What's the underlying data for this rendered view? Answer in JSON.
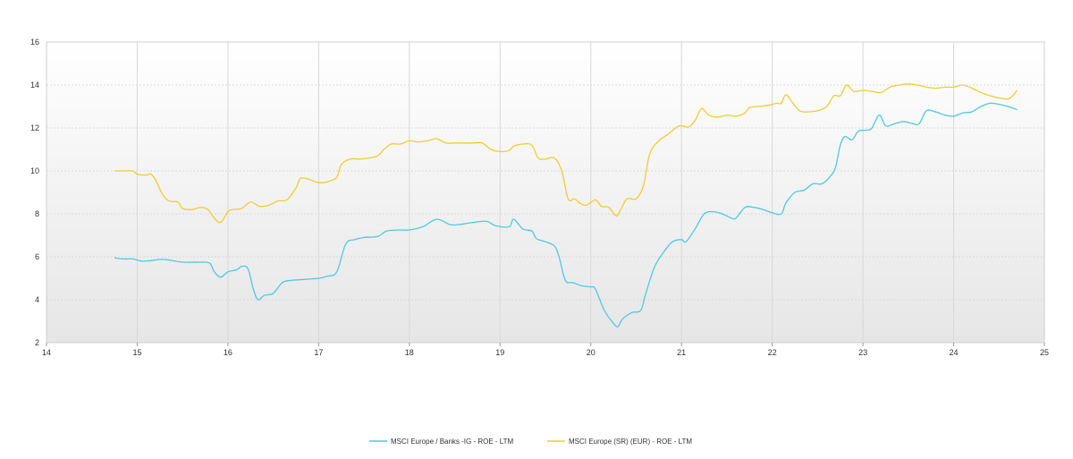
{
  "chart_data": {
    "type": "line",
    "title": "",
    "xlabel": "",
    "ylabel": "",
    "xlim": [
      14,
      25
    ],
    "ylim": [
      2,
      16
    ],
    "x_ticks": [
      14,
      15,
      16,
      17,
      18,
      19,
      20,
      21,
      22,
      23,
      24,
      25
    ],
    "y_ticks": [
      2,
      4,
      6,
      8,
      10,
      12,
      14,
      16
    ],
    "grid": true,
    "legend_position": "bottom",
    "series": [
      {
        "name": "MSCI Europe / Banks -IG - ROE - LTM",
        "color": "#4ec9e6",
        "points": [
          [
            14.75,
            5.95
          ],
          [
            14.85,
            5.9
          ],
          [
            14.95,
            5.9
          ],
          [
            15.05,
            5.8
          ],
          [
            15.15,
            5.82
          ],
          [
            15.25,
            5.88
          ],
          [
            15.35,
            5.85
          ],
          [
            15.5,
            5.75
          ],
          [
            15.7,
            5.75
          ],
          [
            15.8,
            5.7
          ],
          [
            15.85,
            5.3
          ],
          [
            15.92,
            5.05
          ],
          [
            16.0,
            5.3
          ],
          [
            16.1,
            5.4
          ],
          [
            16.15,
            5.55
          ],
          [
            16.22,
            5.45
          ],
          [
            16.28,
            4.5
          ],
          [
            16.33,
            4.0
          ],
          [
            16.4,
            4.2
          ],
          [
            16.5,
            4.3
          ],
          [
            16.6,
            4.8
          ],
          [
            16.7,
            4.9
          ],
          [
            16.85,
            4.95
          ],
          [
            17.0,
            5.0
          ],
          [
            17.1,
            5.1
          ],
          [
            17.2,
            5.3
          ],
          [
            17.3,
            6.6
          ],
          [
            17.4,
            6.8
          ],
          [
            17.5,
            6.9
          ],
          [
            17.65,
            6.95
          ],
          [
            17.75,
            7.2
          ],
          [
            17.9,
            7.25
          ],
          [
            18.0,
            7.25
          ],
          [
            18.15,
            7.4
          ],
          [
            18.3,
            7.75
          ],
          [
            18.45,
            7.5
          ],
          [
            18.55,
            7.5
          ],
          [
            18.7,
            7.6
          ],
          [
            18.85,
            7.65
          ],
          [
            18.95,
            7.45
          ],
          [
            19.1,
            7.4
          ],
          [
            19.15,
            7.75
          ],
          [
            19.25,
            7.3
          ],
          [
            19.35,
            7.2
          ],
          [
            19.4,
            6.85
          ],
          [
            19.5,
            6.7
          ],
          [
            19.6,
            6.5
          ],
          [
            19.65,
            6.0
          ],
          [
            19.72,
            4.9
          ],
          [
            19.8,
            4.8
          ],
          [
            19.9,
            4.65
          ],
          [
            20.0,
            4.6
          ],
          [
            20.05,
            4.5
          ],
          [
            20.15,
            3.5
          ],
          [
            20.25,
            2.9
          ],
          [
            20.3,
            2.75
          ],
          [
            20.35,
            3.1
          ],
          [
            20.45,
            3.4
          ],
          [
            20.55,
            3.5
          ],
          [
            20.6,
            4.2
          ],
          [
            20.7,
            5.5
          ],
          [
            20.8,
            6.2
          ],
          [
            20.9,
            6.7
          ],
          [
            21.0,
            6.8
          ],
          [
            21.05,
            6.7
          ],
          [
            21.15,
            7.3
          ],
          [
            21.25,
            8.0
          ],
          [
            21.35,
            8.1
          ],
          [
            21.45,
            8.0
          ],
          [
            21.55,
            7.8
          ],
          [
            21.6,
            7.8
          ],
          [
            21.7,
            8.3
          ],
          [
            21.8,
            8.3
          ],
          [
            21.9,
            8.2
          ],
          [
            22.0,
            8.05
          ],
          [
            22.1,
            8.0
          ],
          [
            22.15,
            8.5
          ],
          [
            22.25,
            9.0
          ],
          [
            22.35,
            9.1
          ],
          [
            22.45,
            9.4
          ],
          [
            22.55,
            9.4
          ],
          [
            22.65,
            9.8
          ],
          [
            22.7,
            10.2
          ],
          [
            22.75,
            11.2
          ],
          [
            22.8,
            11.6
          ],
          [
            22.88,
            11.45
          ],
          [
            22.95,
            11.85
          ],
          [
            23.05,
            11.9
          ],
          [
            23.1,
            12.0
          ],
          [
            23.18,
            12.6
          ],
          [
            23.25,
            12.1
          ],
          [
            23.35,
            12.2
          ],
          [
            23.45,
            12.3
          ],
          [
            23.55,
            12.2
          ],
          [
            23.62,
            12.2
          ],
          [
            23.7,
            12.8
          ],
          [
            23.8,
            12.75
          ],
          [
            23.9,
            12.6
          ],
          [
            24.0,
            12.55
          ],
          [
            24.1,
            12.7
          ],
          [
            24.2,
            12.75
          ],
          [
            24.3,
            13.0
          ],
          [
            24.4,
            13.15
          ],
          [
            24.5,
            13.1
          ],
          [
            24.6,
            13.0
          ],
          [
            24.7,
            12.85
          ]
        ]
      },
      {
        "name": "MSCI Europe (SR) (EUR) - ROE - LTM",
        "color": "#f2cc30",
        "points": [
          [
            14.75,
            10.0
          ],
          [
            14.85,
            10.0
          ],
          [
            14.95,
            10.0
          ],
          [
            15.0,
            9.85
          ],
          [
            15.1,
            9.8
          ],
          [
            15.15,
            9.85
          ],
          [
            15.2,
            9.6
          ],
          [
            15.28,
            8.9
          ],
          [
            15.35,
            8.6
          ],
          [
            15.45,
            8.55
          ],
          [
            15.5,
            8.25
          ],
          [
            15.6,
            8.2
          ],
          [
            15.7,
            8.3
          ],
          [
            15.78,
            8.2
          ],
          [
            15.85,
            7.8
          ],
          [
            15.92,
            7.6
          ],
          [
            16.0,
            8.1
          ],
          [
            16.05,
            8.2
          ],
          [
            16.15,
            8.25
          ],
          [
            16.25,
            8.55
          ],
          [
            16.35,
            8.35
          ],
          [
            16.45,
            8.4
          ],
          [
            16.55,
            8.6
          ],
          [
            16.65,
            8.65
          ],
          [
            16.75,
            9.2
          ],
          [
            16.8,
            9.65
          ],
          [
            16.9,
            9.6
          ],
          [
            17.0,
            9.45
          ],
          [
            17.1,
            9.5
          ],
          [
            17.2,
            9.7
          ],
          [
            17.25,
            10.3
          ],
          [
            17.35,
            10.55
          ],
          [
            17.45,
            10.55
          ],
          [
            17.55,
            10.6
          ],
          [
            17.65,
            10.7
          ],
          [
            17.72,
            11.0
          ],
          [
            17.8,
            11.25
          ],
          [
            17.9,
            11.25
          ],
          [
            18.0,
            11.4
          ],
          [
            18.1,
            11.35
          ],
          [
            18.2,
            11.4
          ],
          [
            18.3,
            11.5
          ],
          [
            18.4,
            11.3
          ],
          [
            18.5,
            11.3
          ],
          [
            18.6,
            11.3
          ],
          [
            18.7,
            11.3
          ],
          [
            18.8,
            11.3
          ],
          [
            18.9,
            11.0
          ],
          [
            19.0,
            10.9
          ],
          [
            19.1,
            10.95
          ],
          [
            19.15,
            11.15
          ],
          [
            19.25,
            11.25
          ],
          [
            19.35,
            11.2
          ],
          [
            19.42,
            10.6
          ],
          [
            19.5,
            10.55
          ],
          [
            19.6,
            10.6
          ],
          [
            19.68,
            10.0
          ],
          [
            19.75,
            8.7
          ],
          [
            19.82,
            8.7
          ],
          [
            19.88,
            8.5
          ],
          [
            19.95,
            8.4
          ],
          [
            20.05,
            8.65
          ],
          [
            20.12,
            8.35
          ],
          [
            20.2,
            8.3
          ],
          [
            20.28,
            7.9
          ],
          [
            20.33,
            8.2
          ],
          [
            20.4,
            8.7
          ],
          [
            20.5,
            8.7
          ],
          [
            20.58,
            9.3
          ],
          [
            20.65,
            10.8
          ],
          [
            20.75,
            11.4
          ],
          [
            20.85,
            11.7
          ],
          [
            20.95,
            12.05
          ],
          [
            21.0,
            12.1
          ],
          [
            21.08,
            12.05
          ],
          [
            21.15,
            12.35
          ],
          [
            21.22,
            12.9
          ],
          [
            21.3,
            12.6
          ],
          [
            21.4,
            12.5
          ],
          [
            21.5,
            12.6
          ],
          [
            21.6,
            12.55
          ],
          [
            21.7,
            12.7
          ],
          [
            21.75,
            12.95
          ],
          [
            21.85,
            13.0
          ],
          [
            21.95,
            13.05
          ],
          [
            22.05,
            13.15
          ],
          [
            22.1,
            13.15
          ],
          [
            22.15,
            13.55
          ],
          [
            22.22,
            13.2
          ],
          [
            22.3,
            12.8
          ],
          [
            22.4,
            12.75
          ],
          [
            22.5,
            12.8
          ],
          [
            22.6,
            13.0
          ],
          [
            22.68,
            13.5
          ],
          [
            22.75,
            13.5
          ],
          [
            22.82,
            14.0
          ],
          [
            22.9,
            13.7
          ],
          [
            23.0,
            13.75
          ],
          [
            23.1,
            13.7
          ],
          [
            23.2,
            13.65
          ],
          [
            23.3,
            13.9
          ],
          [
            23.4,
            14.0
          ],
          [
            23.5,
            14.05
          ],
          [
            23.6,
            14.0
          ],
          [
            23.7,
            13.9
          ],
          [
            23.8,
            13.85
          ],
          [
            23.9,
            13.9
          ],
          [
            24.0,
            13.9
          ],
          [
            24.1,
            14.0
          ],
          [
            24.2,
            13.85
          ],
          [
            24.3,
            13.65
          ],
          [
            24.4,
            13.5
          ],
          [
            24.5,
            13.4
          ],
          [
            24.6,
            13.35
          ],
          [
            24.65,
            13.5
          ],
          [
            24.7,
            13.75
          ]
        ]
      }
    ]
  }
}
